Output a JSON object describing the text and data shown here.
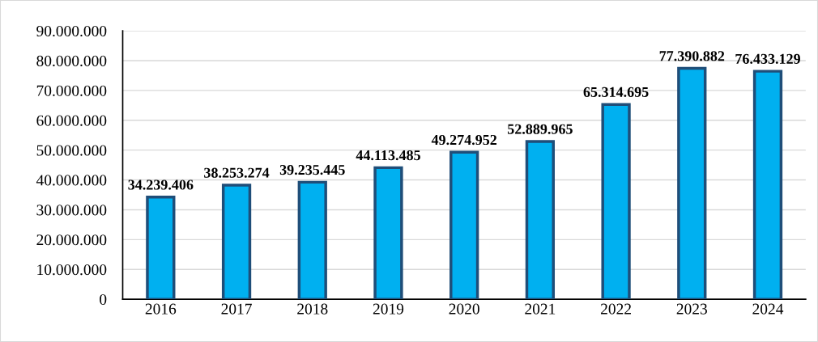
{
  "chart_data": {
    "type": "bar",
    "categories": [
      "2016",
      "2017",
      "2018",
      "2019",
      "2020",
      "2021",
      "2022",
      "2023",
      "2024"
    ],
    "values": [
      34239406,
      38253274,
      39235445,
      44113485,
      49274952,
      52889965,
      65314695,
      77390882,
      76433129
    ],
    "value_labels": [
      "34.239.406",
      "38.253.274",
      "39.235.445",
      "44.113.485",
      "49.274.952",
      "52.889.965",
      "65.314.695",
      "77.390.882",
      "76.433.129"
    ],
    "color": "#00b0f0",
    "ylim": [
      0,
      90000000
    ],
    "yticks": [
      0,
      {
        "value": 10000000,
        "label": "10.000.000"
      },
      {
        "value": 20000000,
        "label": "20.000.000"
      },
      {
        "value": 30000000,
        "label": "30.000.000"
      },
      {
        "value": 40000000,
        "label": "40.000.000"
      },
      {
        "value": 50000000,
        "label": "50.000.000"
      },
      {
        "value": 60000000,
        "label": "60.000.000"
      },
      {
        "value": 70000000,
        "label": "70.000.000"
      },
      {
        "value": 80000000,
        "label": "80.000.000"
      },
      {
        "value": 90000000,
        "label": "90.000.000"
      }
    ],
    "grid": "y"
  }
}
